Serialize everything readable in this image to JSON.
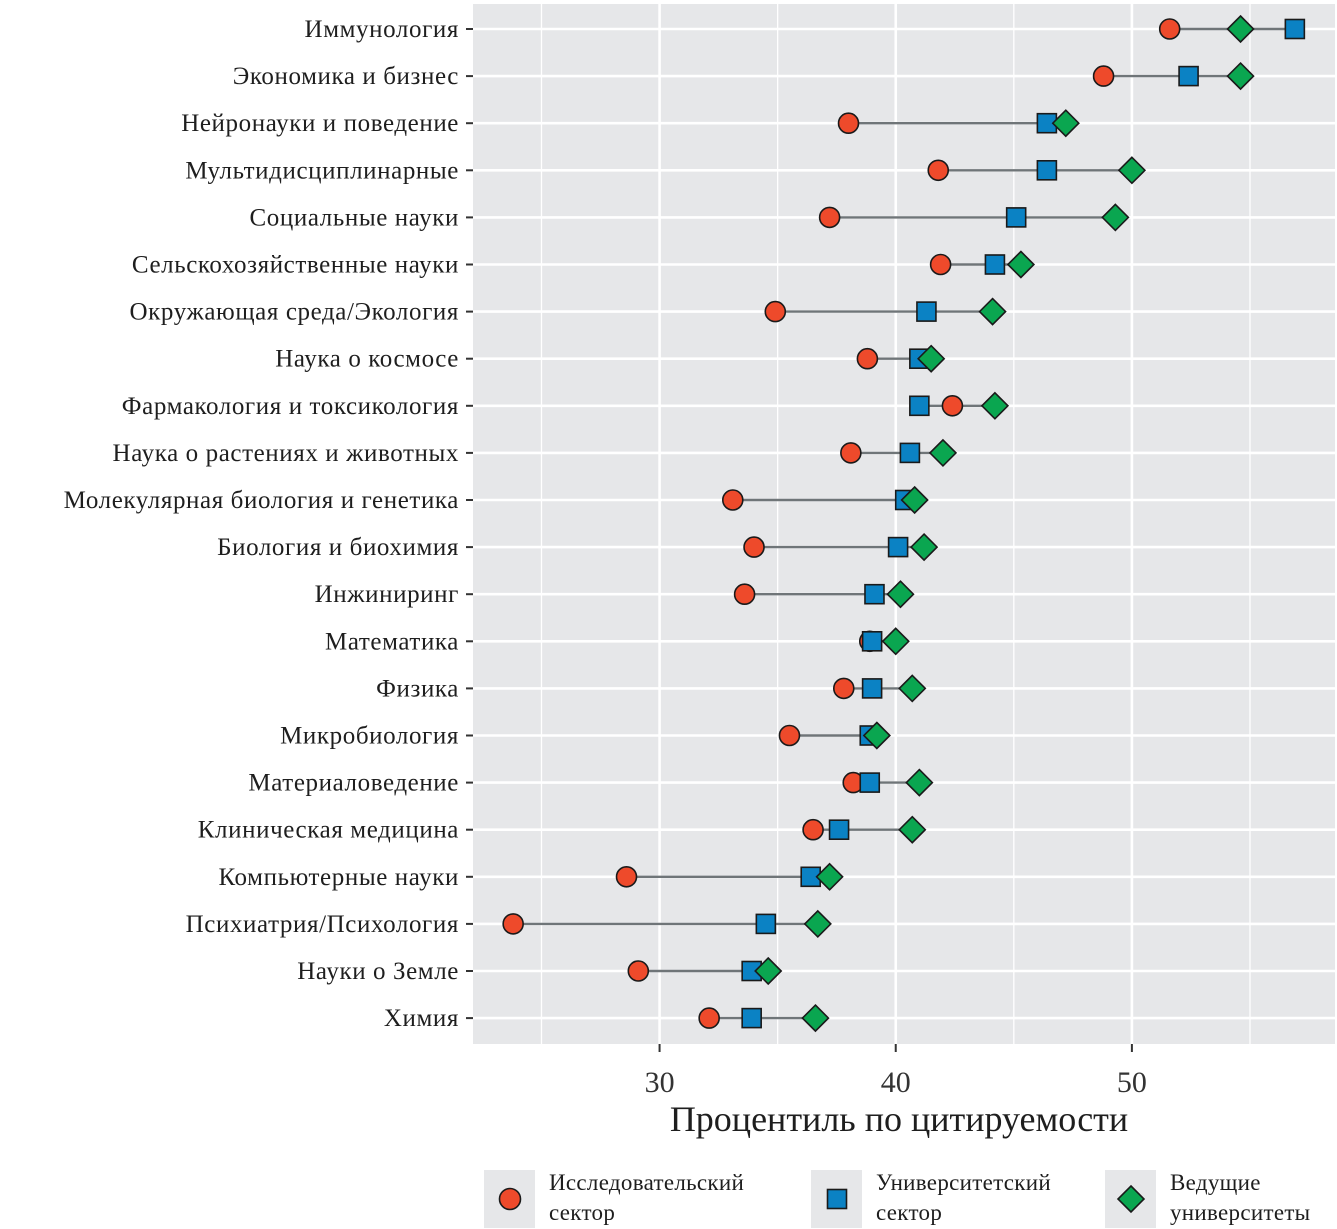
{
  "chart_data": {
    "type": "scatter",
    "subtype": "dot-plot (dumbbell)",
    "title": "",
    "xlabel": "Процентиль по цитируемости",
    "ylabel": "",
    "xlim": [
      22.1,
      58.6
    ],
    "x_ticks": [
      30,
      40,
      50
    ],
    "x_tick_labels": [
      "30",
      "40",
      "50"
    ],
    "grid": true,
    "legend_position": "bottom",
    "categories": [
      "Иммунология",
      "Экономика и бизнес",
      "Нейронауки и поведение",
      "Мультидисциплинарные",
      "Социальные науки",
      "Сельскохозяйственные науки",
      "Окружающая среда/Экология",
      "Наука о космосе",
      "Фармакология и токсикология",
      "Наука о растениях и животных",
      "Молекулярная биология и генетика",
      "Биология и биохимия",
      "Инжиниринг",
      "Математика",
      "Физика",
      "Микробиология",
      "Материаловедение",
      "Клиническая медицина",
      "Компьютерные науки",
      "Психиатрия/Психология",
      "Науки о Земле",
      "Химия"
    ],
    "series": [
      {
        "name": "Исследовательский сектор",
        "legend_label": "Исследовательский\nсектор",
        "shape": "circle",
        "color": "#ee4a2b",
        "values": [
          51.6,
          48.8,
          38.0,
          41.8,
          37.2,
          41.9,
          34.9,
          38.8,
          42.4,
          38.1,
          33.1,
          34.0,
          33.6,
          38.9,
          37.8,
          35.5,
          38.2,
          36.5,
          28.6,
          23.8,
          29.1,
          32.1
        ]
      },
      {
        "name": "Университетский сектор",
        "legend_label": "Университетский\nсектор",
        "shape": "square",
        "color": "#0b82c4",
        "values": [
          56.9,
          52.4,
          46.4,
          46.4,
          45.1,
          44.2,
          41.3,
          41.0,
          41.0,
          40.6,
          40.4,
          40.1,
          39.1,
          39.0,
          39.0,
          38.9,
          38.9,
          37.6,
          36.4,
          34.5,
          33.9,
          33.9
        ]
      },
      {
        "name": "Ведущие университеты",
        "legend_label": "Ведущие\nуниверситеты",
        "shape": "diamond",
        "color": "#0aa650",
        "values": [
          54.6,
          54.6,
          47.2,
          50.0,
          49.3,
          45.3,
          44.1,
          41.5,
          44.2,
          42.0,
          40.8,
          41.2,
          40.2,
          40.0,
          40.7,
          39.2,
          41.0,
          40.7,
          37.2,
          36.7,
          34.6,
          36.6
        ]
      }
    ],
    "colors": {
      "panel_background": "#e6e7e9",
      "grid": "#ffffff",
      "segment": "#6f7578",
      "marker_outline": "#1a1a1a"
    }
  }
}
